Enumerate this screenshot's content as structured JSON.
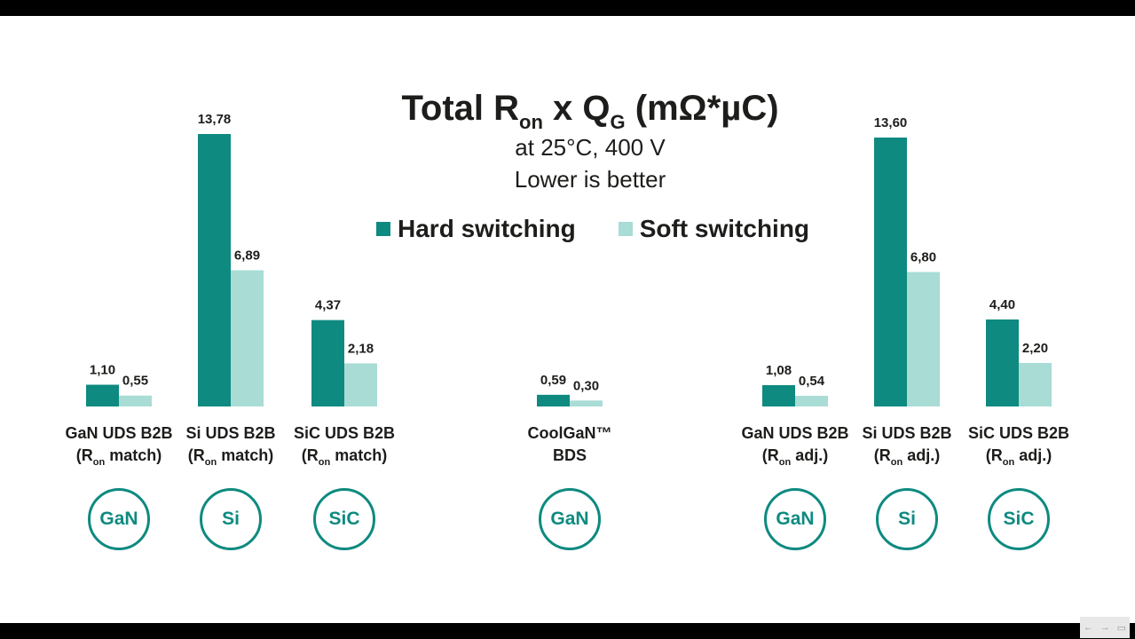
{
  "colors": {
    "hard": "#0e8a80",
    "soft": "#a8dcd5",
    "text": "#1d1d1b"
  },
  "chart_data": {
    "type": "bar",
    "title_main": "Total R",
    "title_sub1": "on",
    "title_mid": " x Q",
    "title_sub2": "G",
    "title_end": " (mΩ*µC)",
    "subtitle_1": "at 25°C, 400 V",
    "subtitle_2": "Lower is better",
    "legend": "top-center",
    "series": [
      {
        "name": "Hard switching",
        "values": [
          1.1,
          13.78,
          4.37,
          0.59,
          1.08,
          13.6,
          4.4
        ]
      },
      {
        "name": "Soft switching",
        "values": [
          0.55,
          6.89,
          2.18,
          0.3,
          0.54,
          6.8,
          2.2
        ]
      }
    ],
    "value_labels": [
      [
        "1,10",
        "13,78",
        "4,37",
        "0,59",
        "1,08",
        "13,60",
        "4,40"
      ],
      [
        "0,55",
        "6,89",
        "2,18",
        "0,30",
        "0,54",
        "6,80",
        "2,20"
      ]
    ],
    "categories": [
      {
        "line1": "GaN UDS B2B",
        "pre": "(R",
        "sub": "on",
        "post": " match)",
        "badge": "GaN"
      },
      {
        "line1": "Si UDS B2B",
        "pre": "(R",
        "sub": "on",
        "post": " match)",
        "badge": "Si"
      },
      {
        "line1": "SiC UDS B2B",
        "pre": "(R",
        "sub": "on",
        "post": " match)",
        "badge": "SiC"
      },
      {
        "line1": "CoolGaN™",
        "pre": "BDS",
        "sub": "",
        "post": "",
        "badge": "GaN"
      },
      {
        "line1": "GaN UDS B2B",
        "pre": "(R",
        "sub": "on",
        "post": " adj.)",
        "badge": "GaN"
      },
      {
        "line1": "Si UDS B2B",
        "pre": "(R",
        "sub": "on",
        "post": " adj.)",
        "badge": "Si"
      },
      {
        "line1": "SiC UDS B2B",
        "pre": "(R",
        "sub": "on",
        "post": " adj.)",
        "badge": "SiC"
      }
    ],
    "ylim": [
      0,
      14
    ],
    "grid": false
  }
}
